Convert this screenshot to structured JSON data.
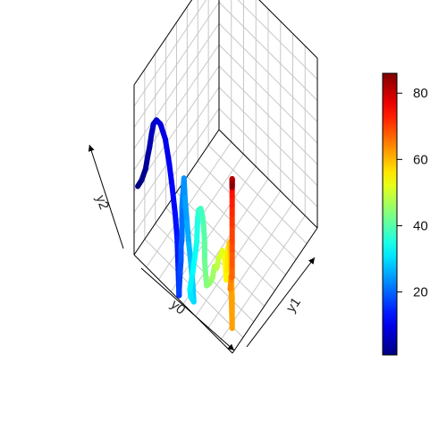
{
  "chart_data": {
    "type": "line",
    "subtype": "3d-line-colored-by-value",
    "axes": {
      "x_label": "y0",
      "y_label": "y1",
      "z_label": "y2"
    },
    "grid": true,
    "box": "back-panels",
    "colorbar": {
      "placement": "right",
      "palette": "jet",
      "range": [
        1,
        86
      ],
      "ticks": [
        20,
        40,
        60,
        80
      ],
      "tick_labels": [
        "20",
        "40",
        "60",
        "80"
      ]
    },
    "line": {
      "color_variable": "index",
      "points": [
        [
          0.02,
          0.02,
          0.4
        ],
        [
          0.06,
          0.02,
          0.46
        ],
        [
          0.1,
          0.02,
          0.55
        ],
        [
          0.12,
          0.02,
          0.63
        ],
        [
          0.14,
          0.02,
          0.7
        ],
        [
          0.16,
          0.02,
          0.79
        ],
        [
          0.18,
          0.02,
          0.86
        ],
        [
          0.21,
          0.02,
          0.9
        ],
        [
          0.25,
          0.02,
          0.9
        ],
        [
          0.3,
          0.02,
          0.84
        ],
        [
          0.34,
          0.02,
          0.72
        ],
        [
          0.37,
          0.02,
          0.6
        ],
        [
          0.4,
          0.02,
          0.46
        ],
        [
          0.42,
          0.02,
          0.33
        ],
        [
          0.43,
          0.02,
          0.17
        ],
        [
          0.44,
          0.02,
          0.0
        ],
        [
          0.44,
          0.02,
          0.02
        ],
        [
          0.45,
          0.02,
          0.14
        ],
        [
          0.46,
          0.02,
          0.22
        ],
        [
          0.46,
          0.02,
          0.3
        ],
        [
          0.47,
          0.02,
          0.36
        ],
        [
          0.47,
          0.02,
          0.54
        ],
        [
          0.48,
          0.02,
          0.63
        ],
        [
          0.49,
          0.02,
          0.72
        ],
        [
          0.5,
          0.02,
          0.61
        ],
        [
          0.52,
          0.02,
          0.48
        ],
        [
          0.54,
          0.02,
          0.36
        ],
        [
          0.56,
          0.02,
          0.26
        ],
        [
          0.58,
          0.02,
          0.14
        ],
        [
          0.59,
          0.02,
          0.05
        ],
        [
          0.56,
          0.02,
          0.06
        ],
        [
          0.55,
          0.02,
          0.1
        ],
        [
          0.58,
          0.02,
          0.22
        ],
        [
          0.6,
          0.02,
          0.32
        ],
        [
          0.62,
          0.02,
          0.42
        ],
        [
          0.63,
          0.02,
          0.57
        ],
        [
          0.64,
          0.02,
          0.62
        ],
        [
          0.66,
          0.02,
          0.64
        ],
        [
          0.68,
          0.02,
          0.6
        ],
        [
          0.69,
          0.02,
          0.55
        ],
        [
          0.7,
          0.02,
          0.46
        ],
        [
          0.7,
          0.02,
          0.36
        ],
        [
          0.71,
          0.02,
          0.28
        ],
        [
          0.72,
          0.02,
          0.22
        ],
        [
          0.75,
          0.02,
          0.25
        ],
        [
          0.78,
          0.02,
          0.3
        ],
        [
          0.8,
          0.02,
          0.38
        ],
        [
          0.82,
          0.02,
          0.38
        ],
        [
          0.83,
          0.02,
          0.4
        ],
        [
          0.84,
          0.02,
          0.45
        ],
        [
          0.86,
          0.02,
          0.48
        ],
        [
          0.88,
          0.02,
          0.52
        ],
        [
          0.9,
          0.02,
          0.5
        ],
        [
          0.91,
          0.02,
          0.46
        ],
        [
          0.92,
          0.02,
          0.37
        ],
        [
          0.93,
          0.02,
          0.43
        ],
        [
          0.94,
          0.02,
          0.57
        ],
        [
          0.95,
          0.02,
          0.6
        ],
        [
          0.96,
          0.02,
          0.62
        ],
        [
          0.97,
          0.02,
          0.48
        ],
        [
          0.98,
          0.02,
          0.3
        ],
        [
          0.98,
          0.02,
          0.12
        ],
        [
          0.97,
          0.02,
          0.35
        ],
        [
          0.96,
          0.02,
          0.34
        ],
        [
          0.97,
          0.02,
          0.4
        ],
        [
          0.97,
          0.02,
          0.42
        ],
        [
          0.98,
          0.02,
          0.42
        ],
        [
          0.98,
          0.02,
          0.49
        ],
        [
          0.98,
          0.02,
          0.58
        ],
        [
          0.98,
          0.02,
          0.63
        ],
        [
          0.98,
          0.02,
          0.73
        ],
        [
          0.98,
          0.02,
          0.79
        ],
        [
          0.98,
          0.02,
          0.84
        ],
        [
          0.98,
          0.02,
          0.9
        ],
        [
          0.98,
          0.02,
          0.94
        ],
        [
          0.98,
          0.02,
          0.97
        ],
        [
          0.98,
          0.02,
          0.98
        ],
        [
          0.98,
          0.02,
          0.99
        ],
        [
          0.98,
          0.02,
          1.0
        ],
        [
          0.98,
          0.02,
          0.99
        ],
        [
          0.98,
          0.02,
          1.0
        ],
        [
          0.98,
          0.02,
          0.99
        ],
        [
          0.98,
          0.02,
          0.98
        ],
        [
          0.98,
          0.02,
          0.97
        ],
        [
          0.98,
          0.02,
          0.96
        ],
        [
          0.98,
          0.02,
          0.95
        ]
      ]
    }
  }
}
